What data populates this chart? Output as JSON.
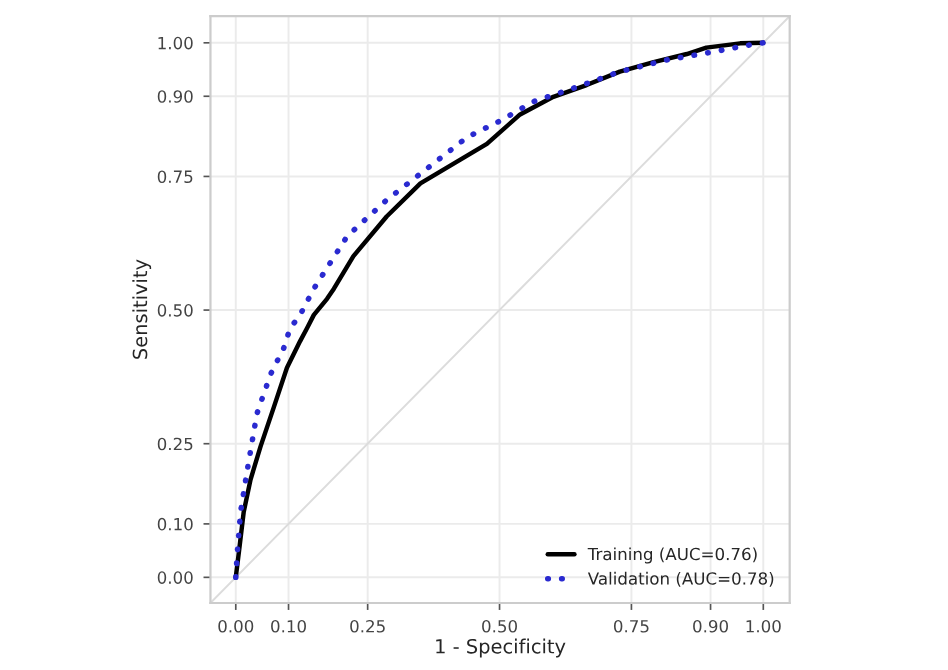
{
  "chart_data": {
    "type": "line",
    "xlabel": "1 - Specificity",
    "ylabel": "Sensitivity",
    "xlim": [
      -0.048,
      1.05
    ],
    "ylim": [
      -0.048,
      1.05
    ],
    "xticks": [
      {
        "value": 0,
        "label": "0.00"
      },
      {
        "value": 0.1,
        "label": "0.10"
      },
      {
        "value": 0.25,
        "label": "0.25"
      },
      {
        "value": 0.5,
        "label": "0.50"
      },
      {
        "value": 0.75,
        "label": "0.75"
      },
      {
        "value": 0.9,
        "label": "0.90"
      },
      {
        "value": 1,
        "label": "1.00"
      }
    ],
    "yticks": [
      {
        "value": 0,
        "label": "0.00"
      },
      {
        "value": 0.1,
        "label": "0.10"
      },
      {
        "value": 0.25,
        "label": "0.25"
      },
      {
        "value": 0.5,
        "label": "0.50"
      },
      {
        "value": 0.75,
        "label": "0.75"
      },
      {
        "value": 0.9,
        "label": "0.90"
      },
      {
        "value": 1,
        "label": "1.00"
      }
    ],
    "grid": true,
    "legend": "bottom right",
    "series": [
      {
        "color": "#dcdcdc",
        "line_style": "solid",
        "x": [
          -0.048,
          1.05
        ],
        "values": [
          -0.048,
          1.05
        ]
      },
      {
        "name": "Training (AUC=0.76)",
        "color": "#000000",
        "line_style": "solid",
        "x": [
          0,
          0.006,
          0.015,
          0.028,
          0.047,
          0.072,
          0.097,
          0.122,
          0.135,
          0.148,
          0.173,
          0.186,
          0.223,
          0.286,
          0.35,
          0.413,
          0.476,
          0.539,
          0.602,
          0.665,
          0.728,
          0.792,
          0.855,
          0.892,
          0.956,
          1
        ],
        "values": [
          0,
          0.048,
          0.122,
          0.183,
          0.245,
          0.318,
          0.392,
          0.442,
          0.466,
          0.491,
          0.521,
          0.54,
          0.601,
          0.675,
          0.737,
          0.774,
          0.811,
          0.866,
          0.899,
          0.921,
          0.946,
          0.964,
          0.979,
          0.991,
          0.999,
          1
        ]
      },
      {
        "name": "Validation (AUC=0.78)",
        "color": "#2a2ad0",
        "line_style": "dotted",
        "x": [
          0,
          0.003,
          0.009,
          0.021,
          0.04,
          0.066,
          0.091,
          0.103,
          0.122,
          0.148,
          0.211,
          0.286,
          0.35,
          0.438,
          0.501,
          0.564,
          0.64,
          0.728,
          0.817,
          0.905,
          0.968,
          1
        ],
        "values": [
          0,
          0.048,
          0.122,
          0.196,
          0.306,
          0.38,
          0.429,
          0.466,
          0.491,
          0.54,
          0.638,
          0.706,
          0.755,
          0.823,
          0.854,
          0.89,
          0.915,
          0.946,
          0.968,
          0.983,
          0.995,
          1
        ]
      }
    ]
  }
}
